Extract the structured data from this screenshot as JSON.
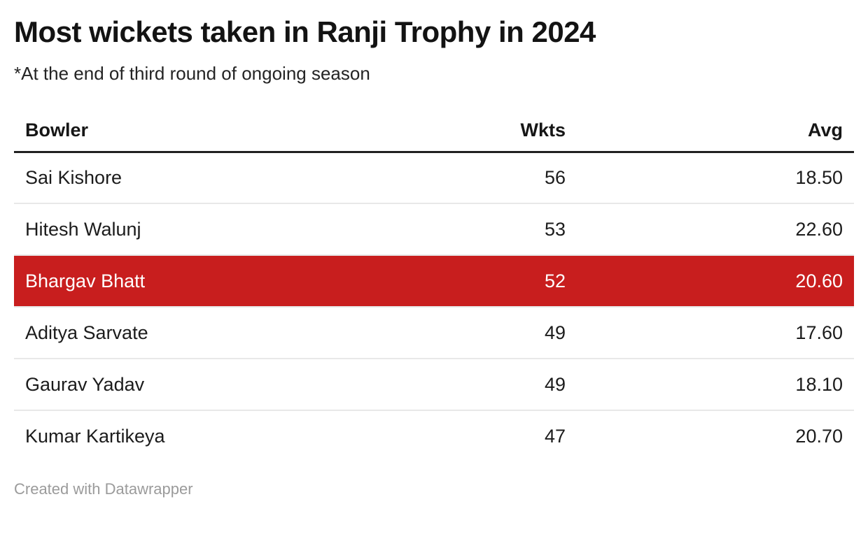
{
  "header": {
    "title": "Most wickets taken in Ranji Trophy in 2024",
    "subtitle": "*At the end of third round of ongoing season"
  },
  "table": {
    "columns": {
      "bowler": "Bowler",
      "wkts": "Wkts",
      "avg": "Avg"
    },
    "rows": [
      {
        "bowler": "Sai Kishore",
        "wkts": "56",
        "avg": "18.50",
        "highlighted": false
      },
      {
        "bowler": "Hitesh Walunj",
        "wkts": "53",
        "avg": "22.60",
        "highlighted": false
      },
      {
        "bowler": "Bhargav Bhatt",
        "wkts": "52",
        "avg": "20.60",
        "highlighted": true
      },
      {
        "bowler": "Aditya Sarvate",
        "wkts": "49",
        "avg": "17.60",
        "highlighted": false
      },
      {
        "bowler": "Gaurav Yadav",
        "wkts": "49",
        "avg": "18.10",
        "highlighted": false
      },
      {
        "bowler": "Kumar Kartikeya",
        "wkts": "47",
        "avg": "20.70",
        "highlighted": false
      }
    ]
  },
  "footer": {
    "attribution": "Created with Datawrapper"
  },
  "colors": {
    "highlight_bg": "#c81e1e",
    "highlight_text": "#ffffff",
    "header_rule": "#212121",
    "row_rule": "#e8e8e8",
    "footer_text": "#9b9b9b"
  },
  "chart_data": {
    "type": "table",
    "title": "Most wickets taken in Ranji Trophy in 2024",
    "subtitle": "*At the end of third round of ongoing season",
    "columns": [
      "Bowler",
      "Wkts",
      "Avg"
    ],
    "rows": [
      [
        "Sai Kishore",
        56,
        18.5
      ],
      [
        "Hitesh Walunj",
        53,
        22.6
      ],
      [
        "Bhargav Bhatt",
        52,
        20.6
      ],
      [
        "Aditya Sarvate",
        49,
        17.6
      ],
      [
        "Gaurav Yadav",
        49,
        18.1
      ],
      [
        "Kumar Kartikeya",
        47,
        20.7
      ]
    ],
    "highlighted_row": "Bhargav Bhatt",
    "attribution": "Created with Datawrapper",
    "layout_hints": {
      "wkts_align": "right",
      "avg_align": "right",
      "grid": "horizontal-rules-only"
    }
  }
}
